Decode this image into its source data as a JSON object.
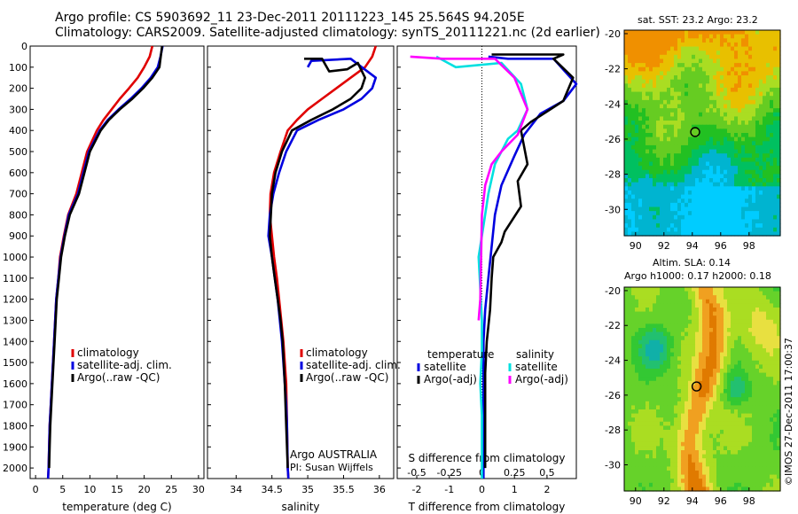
{
  "titles": {
    "line1": "Argo profile: CS 5903692_11 23-Dec-2011 20111223_145 25.564S 94.205E",
    "line2": "Climatology: CARS2009. Satellite-adjusted climatology: synTS_20111221.nc (2d earlier)"
  },
  "map_titles": {
    "sst": "sat. SST: 23.2 Argo: 23.2",
    "sla1": "Altim. SLA: 0.14",
    "sla2": "Argo h1000: 0.17 h2000: 0.18"
  },
  "credit": "©IMOS 27-Dec-2011 17:00:37",
  "colors": {
    "climatology": "#e00000",
    "satellite": "#0000e0",
    "argo": "#000000",
    "sal_satellite": "#00e0e0",
    "sal_argo": "#ff00ff"
  },
  "chart_data": [
    {
      "type": "line",
      "xlabel": "temperature (deg C)",
      "ylabel": "",
      "xlim": [
        -1,
        31
      ],
      "ylim": [
        2050,
        0
      ],
      "xticks": [
        "0",
        "5",
        "10",
        "15",
        "20",
        "25",
        "30"
      ],
      "yticks": [
        "0",
        "100",
        "200",
        "300",
        "400",
        "500",
        "600",
        "700",
        "800",
        "900",
        "1000",
        "1100",
        "1200",
        "1300",
        "1400",
        "1500",
        "1600",
        "1700",
        "1800",
        "1900",
        "2000"
      ],
      "legend": [
        "climatology",
        "satellite-adj. clim.",
        "Argo(..raw -QC)"
      ],
      "series": [
        {
          "name": "climatology",
          "color": "#e00000",
          "x": [
            21.5,
            21,
            20,
            18.8,
            17.2,
            15.5,
            14,
            12.5,
            11.3,
            9.5,
            7.5,
            6.0,
            5.2,
            4.5,
            4.2,
            3.8,
            3.4,
            3.0,
            2.8,
            2.6,
            2.5,
            2.4,
            2.3
          ],
          "y": [
            0,
            50,
            100,
            150,
            200,
            250,
            300,
            350,
            400,
            500,
            700,
            800,
            900,
            1000,
            1100,
            1200,
            1400,
            1600,
            1700,
            1800,
            1900,
            2000,
            2050
          ]
        },
        {
          "name": "satellite-adj. clim.",
          "color": "#0000e0",
          "x": [
            23.4,
            23.0,
            22.5,
            21.2,
            19.5,
            17.5,
            15.3,
            13.3,
            11.8,
            9.8,
            7.8,
            6.1,
            5.3,
            4.6,
            4.2,
            3.8,
            3.4,
            3.0,
            2.8,
            2.6,
            2.5,
            2.4,
            2.3
          ],
          "y": [
            0,
            50,
            100,
            150,
            200,
            250,
            300,
            350,
            400,
            500,
            700,
            800,
            900,
            1000,
            1100,
            1200,
            1400,
            1600,
            1700,
            1800,
            1900,
            2000,
            2050
          ]
        },
        {
          "name": "Argo(..raw -QC)",
          "color": "#000000",
          "x": [
            23.3,
            23.1,
            22.8,
            21.5,
            19.8,
            17.8,
            15.5,
            13.5,
            12.0,
            10.0,
            8.0,
            6.3,
            5.4,
            4.7,
            4.3,
            3.9,
            3.5,
            3.1,
            2.9,
            2.7,
            2.6,
            2.5
          ],
          "y": [
            0,
            40,
            100,
            150,
            200,
            250,
            300,
            350,
            400,
            500,
            700,
            800,
            900,
            1000,
            1100,
            1200,
            1400,
            1600,
            1700,
            1800,
            1900,
            2000
          ]
        }
      ],
      "annotation": ""
    },
    {
      "type": "line",
      "xlabel": "salinity",
      "ylabel": "",
      "xlim": [
        33.6,
        36.2
      ],
      "ylim": [
        2050,
        0
      ],
      "xticks": [
        "34",
        "34.5",
        "35",
        "35.5",
        "36"
      ],
      "legend": [
        "climatology",
        "satellite-adj. clim.",
        "Argo(..raw -QC)"
      ],
      "series": [
        {
          "name": "climatology",
          "color": "#e00000",
          "x": [
            35.95,
            35.9,
            35.8,
            35.6,
            35.4,
            35.2,
            35.0,
            34.85,
            34.72,
            34.62,
            34.53,
            34.48,
            34.47,
            34.5,
            34.53,
            34.57,
            34.6,
            34.63,
            34.66,
            34.68,
            34.7,
            34.71,
            34.72,
            34.73
          ],
          "y": [
            0,
            50,
            100,
            150,
            200,
            250,
            300,
            350,
            400,
            500,
            600,
            700,
            800,
            900,
            1000,
            1100,
            1200,
            1300,
            1400,
            1500,
            1600,
            1800,
            2000,
            2050
          ]
        },
        {
          "name": "satellite-adj. clim.",
          "color": "#0000e0",
          "x": [
            35.0,
            35.05,
            35.6,
            35.95,
            35.9,
            35.75,
            35.5,
            35.15,
            34.85,
            34.7,
            34.6,
            34.52,
            34.47,
            34.45,
            34.5,
            34.54,
            34.58,
            34.61,
            34.64,
            34.66,
            34.68,
            34.7,
            34.71,
            34.72,
            34.73
          ],
          "y": [
            100,
            70,
            60,
            150,
            200,
            250,
            300,
            350,
            400,
            500,
            600,
            700,
            800,
            900,
            1000,
            1100,
            1200,
            1300,
            1400,
            1500,
            1600,
            1700,
            1800,
            2000,
            2050
          ]
        },
        {
          "name": "Argo(..raw -QC)",
          "color": "#000000",
          "x": [
            34.95,
            35.2,
            35.3,
            35.55,
            35.7,
            35.8,
            35.75,
            35.6,
            35.35,
            35.05,
            34.78,
            34.64,
            34.55,
            34.5,
            34.47,
            34.5,
            34.54,
            34.58,
            34.62,
            34.65,
            34.68,
            34.7,
            34.72
          ],
          "y": [
            60,
            60,
            120,
            110,
            80,
            150,
            200,
            250,
            300,
            350,
            400,
            500,
            600,
            700,
            900,
            1000,
            1100,
            1200,
            1300,
            1400,
            1600,
            1800,
            2000
          ]
        }
      ],
      "annotation": "Argo AUSTRALIA\nPI: Susan Wijffels"
    },
    {
      "type": "line",
      "xlabel": "T difference from climatology",
      "xlabel_top": "S difference from climatology",
      "xlim": [
        -2.6,
        2.9
      ],
      "ylim": [
        2050,
        0
      ],
      "xticks_T": [
        "-2",
        "-1",
        "0",
        "1",
        "2"
      ],
      "xticks_S": [
        "-0.5",
        "-0.25",
        "0",
        "0.25",
        "0.5"
      ],
      "legend_temperature": {
        "title": "temperature",
        "items": [
          "satellite",
          "Argo(-adj)"
        ]
      },
      "legend_salinity": {
        "title": "salinity",
        "items": [
          "satellite",
          "Argo(-adj)"
        ]
      },
      "series": [
        {
          "name": "satellite",
          "group": "temperature",
          "color": "#0000e0",
          "x": [
            0.2,
            0.8,
            2.2,
            2.9,
            2.5,
            1.8,
            1.6,
            1.3,
            1.0,
            0.6,
            0.4,
            0.3,
            0.2,
            0.1,
            0.05,
            0.05,
            0.05,
            0.05,
            0.05,
            0.05
          ],
          "y": [
            50,
            60,
            60,
            180,
            260,
            320,
            360,
            420,
            520,
            660,
            800,
            950,
            1100,
            1250,
            1400,
            1550,
            1700,
            1850,
            2000,
            2050
          ]
        },
        {
          "name": "Argo(-adj)",
          "group": "temperature",
          "color": "#000000",
          "x": [
            0.3,
            2.5,
            2.2,
            2.8,
            2.5,
            1.9,
            1.5,
            1.2,
            1.4,
            1.1,
            1.2,
            0.7,
            0.6,
            0.35,
            0.3,
            0.25,
            0.15,
            0.1,
            0.1,
            0.1,
            0.1
          ],
          "y": [
            40,
            40,
            60,
            150,
            260,
            320,
            360,
            400,
            560,
            640,
            760,
            880,
            930,
            1000,
            1100,
            1250,
            1400,
            1550,
            1700,
            1850,
            2000
          ]
        },
        {
          "name": "satellite",
          "group": "salinity",
          "color": "#00e0e0",
          "x": [
            -1.4,
            -0.8,
            0.6,
            1.2,
            1.4,
            1.1,
            0.8,
            0.4,
            0.2,
            0.0,
            -0.1,
            -0.05,
            0.0,
            0.0,
            -0.05,
            0.0,
            0.0,
            0.0,
            0.0
          ],
          "y": [
            50,
            100,
            80,
            180,
            300,
            400,
            440,
            560,
            700,
            900,
            1000,
            1150,
            1300,
            1450,
            1600,
            1750,
            1900,
            2000,
            2050
          ]
        },
        {
          "name": "Argo(-adj)",
          "group": "salinity",
          "color": "#ff00ff",
          "x": [
            -2.2,
            -1.2,
            0.4,
            1.0,
            1.4,
            1.1,
            0.6,
            0.3,
            0.1,
            0.0,
            -0.05,
            -0.1
          ],
          "y": [
            50,
            60,
            60,
            150,
            300,
            420,
            500,
            560,
            660,
            800,
            1200,
            1300
          ]
        }
      ]
    },
    {
      "type": "heatmap",
      "title": "sat. SST: 23.2 Argo: 23.2",
      "xlim": [
        89.2,
        100.2
      ],
      "ylim": [
        -31.5,
        -19.8
      ],
      "xticks": [
        "90",
        "92",
        "94",
        "96",
        "98"
      ],
      "yticks": [
        "-20",
        "-22",
        "-24",
        "-26",
        "-28",
        "-30"
      ],
      "marker": {
        "lon": 94.2,
        "lat": -25.6
      },
      "colorscale": [
        "#00ccff",
        "#00b4d0",
        "#00c060",
        "#22c022",
        "#66cc22",
        "#aadd22",
        "#e8c000",
        "#f09000"
      ]
    },
    {
      "type": "heatmap",
      "title": "Altim. SLA: 0.14",
      "xlim": [
        89.2,
        100.2
      ],
      "ylim": [
        -31.5,
        -19.8
      ],
      "xticks": [
        "90",
        "92",
        "94",
        "96",
        "98"
      ],
      "yticks": [
        "-20",
        "-22",
        "-24",
        "-26",
        "-28",
        "-30"
      ],
      "marker": {
        "lon": 94.3,
        "lat": -25.5
      },
      "colorscale": [
        "#10b0a8",
        "#22c070",
        "#33c833",
        "#66d22a",
        "#aadd22",
        "#e8e040",
        "#f0a020",
        "#e07a00"
      ]
    }
  ]
}
